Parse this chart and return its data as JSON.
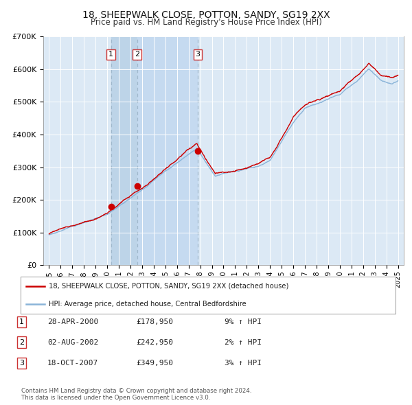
{
  "title": "18, SHEEPWALK CLOSE, POTTON, SANDY, SG19 2XX",
  "subtitle": "Price paid vs. HM Land Registry's House Price Index (HPI)",
  "background_color": "#ffffff",
  "plot_bg_color": "#dce9f5",
  "grid_color": "#ffffff",
  "sale_points": [
    {
      "date_num": 2000.32,
      "price": 178950,
      "label": "1"
    },
    {
      "date_num": 2002.58,
      "price": 242950,
      "label": "2"
    },
    {
      "date_num": 2007.79,
      "price": 349950,
      "label": "3"
    }
  ],
  "sale_marker_color": "#cc0000",
  "hpi_line_color": "#8ab4d8",
  "price_line_color": "#cc0000",
  "ylim": [
    0,
    700000
  ],
  "xlim": [
    1994.5,
    2025.5
  ],
  "yticks": [
    0,
    100000,
    200000,
    300000,
    400000,
    500000,
    600000,
    700000
  ],
  "ytick_labels": [
    "£0",
    "£100K",
    "£200K",
    "£300K",
    "£400K",
    "£500K",
    "£600K",
    "£700K"
  ],
  "xticks": [
    1995,
    1996,
    1997,
    1998,
    1999,
    2000,
    2001,
    2002,
    2003,
    2004,
    2005,
    2006,
    2007,
    2008,
    2009,
    2010,
    2011,
    2012,
    2013,
    2014,
    2015,
    2016,
    2017,
    2018,
    2019,
    2020,
    2021,
    2022,
    2023,
    2024,
    2025
  ],
  "xtick_labels": [
    "1995",
    "1996",
    "1997",
    "1998",
    "1999",
    "2000",
    "2001",
    "2002",
    "2003",
    "2004",
    "2005",
    "2006",
    "2007",
    "2008",
    "2009",
    "2010",
    "2011",
    "2012",
    "2013",
    "2014",
    "2015",
    "2016",
    "2017",
    "2018",
    "2019",
    "2020",
    "2021",
    "2022",
    "2023",
    "2024",
    "2025"
  ],
  "legend_entries": [
    {
      "label": "18, SHEEPWALK CLOSE, POTTON, SANDY, SG19 2XX (detached house)",
      "color": "#cc0000",
      "lw": 1.8
    },
    {
      "label": "HPI: Average price, detached house, Central Bedfordshire",
      "color": "#8ab4d8",
      "lw": 1.8
    }
  ],
  "table_rows": [
    {
      "num": "1",
      "date": "28-APR-2000",
      "price": "£178,950",
      "hpi": "9% ↑ HPI"
    },
    {
      "num": "2",
      "date": "02-AUG-2002",
      "price": "£242,950",
      "hpi": "2% ↑ HPI"
    },
    {
      "num": "3",
      "date": "18-OCT-2007",
      "price": "£349,950",
      "hpi": "3% ↑ HPI"
    }
  ],
  "footer_text": "Contains HM Land Registry data © Crown copyright and database right 2024.\nThis data is licensed under the Open Government Licence v3.0."
}
